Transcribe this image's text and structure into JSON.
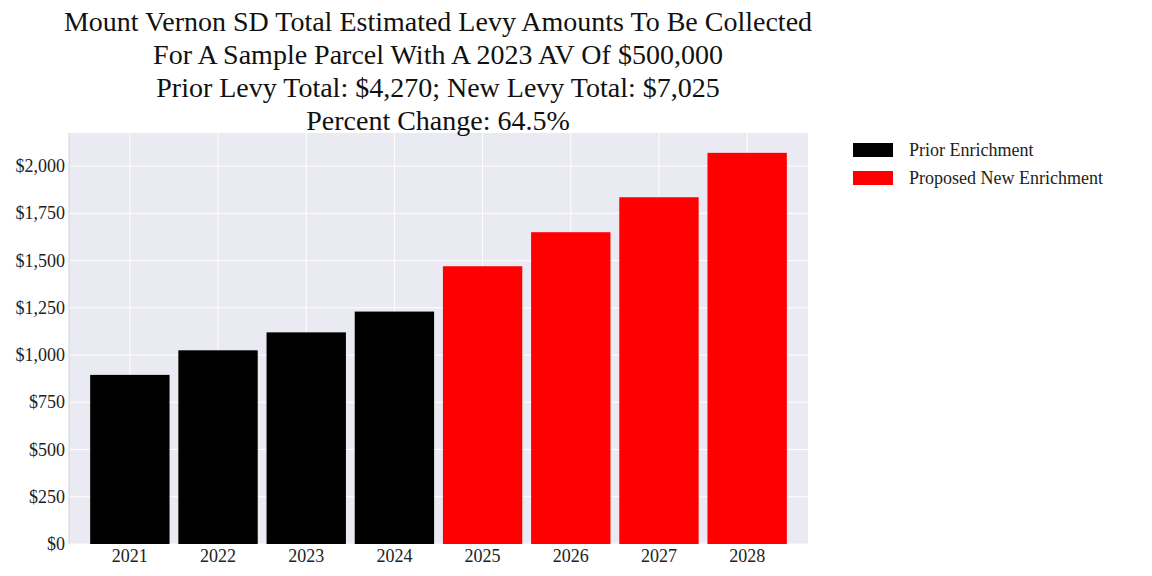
{
  "chart_data": {
    "type": "bar",
    "title": [
      "Mount Vernon SD Total Estimated Levy Amounts To Be Collected",
      "For A Sample Parcel With A 2023 AV Of $500,000",
      "Prior Levy Total:  $4,270; New Levy Total: $7,025",
      "Percent Change: 64.5%"
    ],
    "categories": [
      "2021",
      "2022",
      "2023",
      "2024",
      "2025",
      "2026",
      "2027",
      "2028"
    ],
    "series": [
      {
        "name": "Prior Enrichment",
        "color": "#000000",
        "values": [
          895,
          1025,
          1120,
          1230,
          null,
          null,
          null,
          null
        ]
      },
      {
        "name": "Proposed New Enrichment",
        "color": "#ff0000",
        "values": [
          null,
          null,
          null,
          null,
          1470,
          1650,
          1835,
          2070
        ]
      }
    ],
    "ylim": [
      0,
      2175
    ],
    "yticks": [
      {
        "value": 0,
        "label": "$0"
      },
      {
        "value": 250,
        "label": "$250"
      },
      {
        "value": 500,
        "label": "$500"
      },
      {
        "value": 750,
        "label": "$750"
      },
      {
        "value": 1000,
        "label": "$1,000"
      },
      {
        "value": 1250,
        "label": "$1,250"
      },
      {
        "value": 1500,
        "label": "$1,500"
      },
      {
        "value": 1750,
        "label": "$1,750"
      },
      {
        "value": 2000,
        "label": "$2,000"
      }
    ],
    "grid": true,
    "legend": "outside-upper-right"
  }
}
